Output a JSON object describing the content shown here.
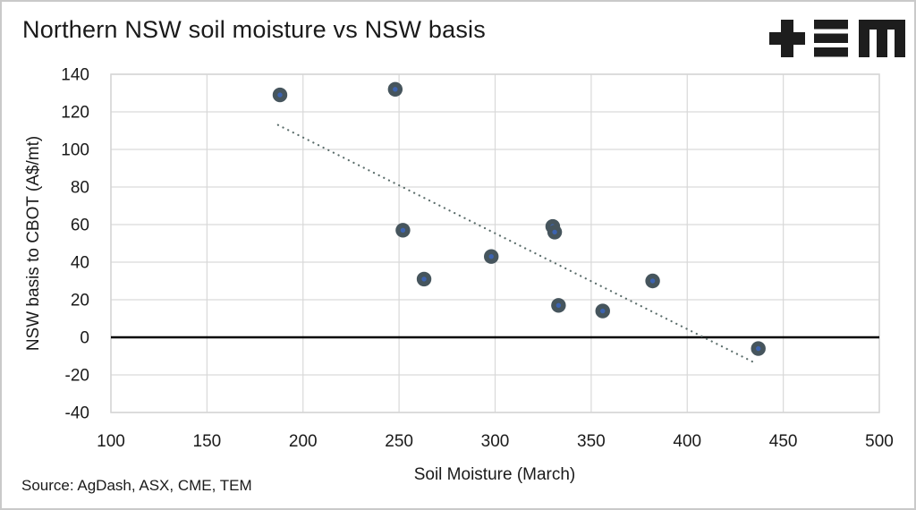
{
  "page": {
    "title": "Northern NSW soil moisture vs NSW basis",
    "source": "Source: AgDash, ASX, CME, TEM",
    "logo": {
      "name": "tem-logo",
      "color": "#1d1d1d"
    }
  },
  "chart_data": {
    "type": "scatter",
    "title": "Northern NSW soil moisture vs NSW basis",
    "xlabel": "Soil Moisture (March)",
    "ylabel": "NSW basis to CBOT (A$/mt)",
    "xlim": [
      100,
      500
    ],
    "ylim": [
      -40,
      140
    ],
    "x_ticks": [
      100,
      150,
      200,
      250,
      300,
      350,
      400,
      450,
      500
    ],
    "y_ticks": [
      140,
      120,
      100,
      80,
      60,
      40,
      20,
      0,
      -20,
      -40
    ],
    "grid": true,
    "zero_line": true,
    "legend": "none",
    "points": [
      {
        "x": 188,
        "y": 129
      },
      {
        "x": 248,
        "y": 132
      },
      {
        "x": 252,
        "y": 57
      },
      {
        "x": 263,
        "y": 31
      },
      {
        "x": 298,
        "y": 43
      },
      {
        "x": 330,
        "y": 59
      },
      {
        "x": 331,
        "y": 56
      },
      {
        "x": 333,
        "y": 17
      },
      {
        "x": 356,
        "y": 14
      },
      {
        "x": 382,
        "y": 30
      },
      {
        "x": 437,
        "y": -6
      }
    ],
    "trendline": {
      "style": "dotted",
      "from": {
        "x": 187,
        "y": 113
      },
      "to": {
        "x": 436,
        "y": -14
      }
    },
    "colors": {
      "point_fill": "#46555d",
      "point_center": "#3c63b0",
      "trend": "#5c6e6c",
      "grid": "#d9d9d9",
      "plot_border": "#d4d4d4",
      "zero_line": "#000000",
      "text": "#1a1a1a"
    }
  }
}
